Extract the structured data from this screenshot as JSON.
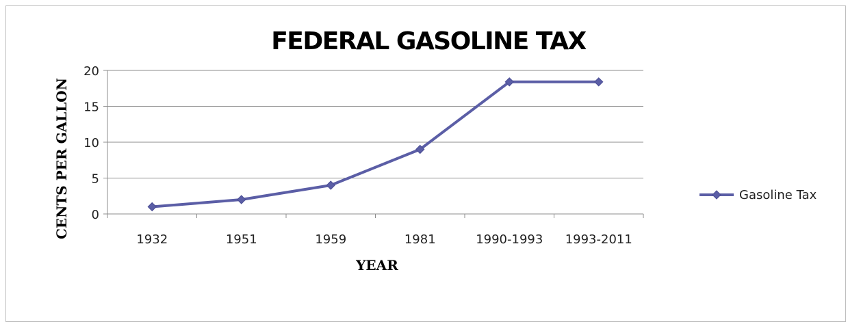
{
  "chart_data": {
    "type": "line",
    "title": "FEDERAL GASOLINE TAX",
    "xlabel": "YEAR",
    "ylabel": "CENTS PER GALLON",
    "categories": [
      "1932",
      "1951",
      "1959",
      "1981",
      "1990-1993",
      "1993-2011"
    ],
    "series": [
      {
        "name": "Gasoline Tax",
        "values": [
          1,
          2,
          4,
          9,
          18.4,
          18.4
        ],
        "color": "#5b5ea6",
        "marker": "diamond"
      }
    ],
    "ylim": [
      0,
      20
    ],
    "yticks": [
      0,
      5,
      10,
      15,
      20
    ],
    "ytick_labels": [
      "0",
      "5",
      "10",
      "15",
      "20"
    ],
    "grid": true,
    "legend_position": "right"
  }
}
